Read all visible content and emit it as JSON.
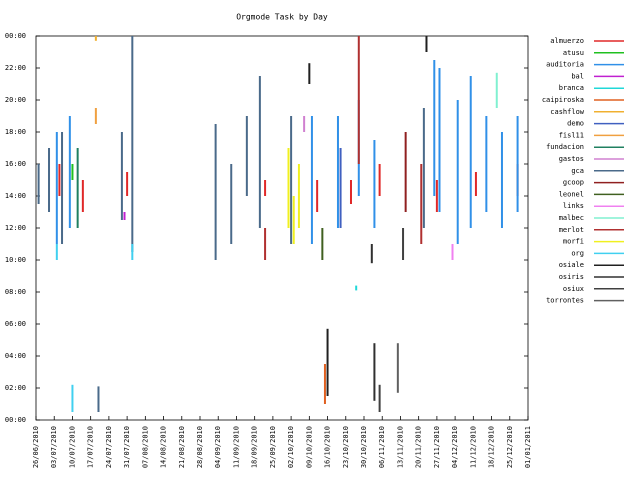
{
  "chart_data": {
    "type": "range",
    "title": "Orgmode Task by Day",
    "xlim": [
      "2010-06-26",
      "2011-01-01"
    ],
    "xticks": [
      {
        "value": "2010-06-26",
        "label": "26/06/2010"
      },
      {
        "value": "2010-07-03",
        "label": "03/07/2010"
      },
      {
        "value": "2010-07-10",
        "label": "10/07/2010"
      },
      {
        "value": "2010-07-17",
        "label": "17/07/2010"
      },
      {
        "value": "2010-07-24",
        "label": "24/07/2010"
      },
      {
        "value": "2010-07-31",
        "label": "31/07/2010"
      },
      {
        "value": "2010-08-07",
        "label": "07/08/2010"
      },
      {
        "value": "2010-08-14",
        "label": "14/08/2010"
      },
      {
        "value": "2010-08-21",
        "label": "21/08/2010"
      },
      {
        "value": "2010-08-28",
        "label": "28/08/2010"
      },
      {
        "value": "2010-09-04",
        "label": "04/09/2010"
      },
      {
        "value": "2010-09-11",
        "label": "11/09/2010"
      },
      {
        "value": "2010-09-18",
        "label": "18/09/2010"
      },
      {
        "value": "2010-09-25",
        "label": "25/09/2010"
      },
      {
        "value": "2010-10-02",
        "label": "02/10/2010"
      },
      {
        "value": "2010-10-09",
        "label": "09/10/2010"
      },
      {
        "value": "2010-10-16",
        "label": "16/10/2010"
      },
      {
        "value": "2010-10-23",
        "label": "23/10/2010"
      },
      {
        "value": "2010-10-30",
        "label": "30/10/2010"
      },
      {
        "value": "2010-11-06",
        "label": "06/11/2010"
      },
      {
        "value": "2010-11-13",
        "label": "13/11/2010"
      },
      {
        "value": "2010-11-20",
        "label": "20/11/2010"
      },
      {
        "value": "2010-11-27",
        "label": "27/11/2010"
      },
      {
        "value": "2010-12-04",
        "label": "04/12/2010"
      },
      {
        "value": "2010-12-11",
        "label": "11/12/2010"
      },
      {
        "value": "2010-12-18",
        "label": "18/12/2010"
      },
      {
        "value": "2010-12-25",
        "label": "25/12/2010"
      },
      {
        "value": "2011-01-01",
        "label": "01/01/2011"
      }
    ],
    "ylim": [
      0,
      24
    ],
    "yticks": [
      {
        "value": 0,
        "label": "00:00"
      },
      {
        "value": 2,
        "label": "02:00"
      },
      {
        "value": 4,
        "label": "04:00"
      },
      {
        "value": 6,
        "label": "06:00"
      },
      {
        "value": 8,
        "label": "08:00"
      },
      {
        "value": 10,
        "label": "10:00"
      },
      {
        "value": 12,
        "label": "12:00"
      },
      {
        "value": 14,
        "label": "14:00"
      },
      {
        "value": 16,
        "label": "16:00"
      },
      {
        "value": 18,
        "label": "18:00"
      },
      {
        "value": 20,
        "label": "20:00"
      },
      {
        "value": 22,
        "label": "22:00"
      },
      {
        "value": 24,
        "label": "00:00"
      }
    ],
    "legend": "right",
    "series": [
      {
        "name": "almuerzo",
        "color": "#e02828",
        "x": [
          "2010-07-05",
          "2010-07-14",
          "2010-07-31",
          "2010-09-22",
          "2010-10-12",
          "2010-10-25",
          "2010-11-05",
          "2010-11-27",
          "2010-12-12",
          "2010-12-28"
        ],
        "start": [
          14,
          13,
          14,
          14,
          13,
          13.5,
          14,
          13,
          14,
          14
        ],
        "end": [
          16,
          15,
          15.5,
          15,
          15,
          15,
          16,
          15,
          15.5,
          16
        ]
      },
      {
        "name": "atusu",
        "color": "#20c020",
        "x": [
          "2010-07-10"
        ],
        "start": [
          15
        ],
        "end": [
          16
        ]
      },
      {
        "name": "auditoria",
        "color": "#3090e8",
        "x": [
          "2010-07-04",
          "2010-07-09",
          "2010-10-10",
          "2010-10-20",
          "2010-10-28",
          "2010-11-03",
          "2010-11-26",
          "2010-11-28",
          "2010-12-05",
          "2010-12-10",
          "2010-12-16",
          "2010-12-22",
          "2010-12-28"
        ],
        "start": [
          11,
          12,
          11,
          12,
          14,
          12,
          14,
          13,
          11,
          12,
          13,
          12,
          13
        ],
        "end": [
          18,
          19,
          19,
          19,
          20,
          17.5,
          22.5,
          22,
          20,
          21.5,
          19,
          18,
          19
        ]
      },
      {
        "name": "bal",
        "color": "#c020d0",
        "x": [
          "2010-07-30"
        ],
        "start": [
          12.5
        ],
        "end": [
          13
        ]
      },
      {
        "name": "branca",
        "color": "#20d8d8",
        "x": [
          "2010-10-27"
        ],
        "start": [
          8.1
        ],
        "end": [
          8.4
        ]
      },
      {
        "name": "caipiroska",
        "color": "#e06020",
        "x": [
          "2010-10-15"
        ],
        "start": [
          1
        ],
        "end": [
          3.5
        ]
      },
      {
        "name": "cashflow",
        "color": "#f0b030",
        "x": [
          "2010-07-19"
        ],
        "start": [
          23.7
        ],
        "end": [
          24
        ]
      },
      {
        "name": "demo",
        "color": "#4060c0",
        "x": [
          "2010-10-21"
        ],
        "start": [
          12
        ],
        "end": [
          17
        ]
      },
      {
        "name": "fisl11",
        "color": "#f0a040",
        "x": [
          "2010-07-19"
        ],
        "start": [
          18.5
        ],
        "end": [
          19.5
        ]
      },
      {
        "name": "fundacion",
        "color": "#208060",
        "x": [
          "2010-07-12"
        ],
        "start": [
          12
        ],
        "end": [
          17
        ]
      },
      {
        "name": "gastos",
        "color": "#d080d0",
        "x": [
          "2010-10-07"
        ],
        "start": [
          18
        ],
        "end": [
          19
        ]
      },
      {
        "name": "gca",
        "color": "#4a6a8a",
        "x": [
          "2010-06-27",
          "2010-07-01",
          "2010-07-06",
          "2010-07-20",
          "2010-07-29",
          "2010-08-02",
          "2010-09-03",
          "2010-09-09",
          "2010-09-15",
          "2010-09-20",
          "2010-10-02",
          "2010-11-22"
        ],
        "start": [
          13.5,
          13,
          11,
          0.5,
          12.5,
          10.5,
          10,
          11,
          14,
          12,
          11,
          12
        ],
        "end": [
          16,
          17,
          18,
          2.1,
          18,
          24,
          18.5,
          16,
          19,
          21.5,
          19,
          19.5
        ]
      },
      {
        "name": "gcoop",
        "color": "#902020",
        "x": [
          "2010-11-15"
        ],
        "start": [
          13
        ],
        "end": [
          18
        ]
      },
      {
        "name": "leonel",
        "color": "#406020",
        "x": [
          "2010-10-14"
        ],
        "start": [
          10
        ],
        "end": [
          12
        ]
      },
      {
        "name": "links",
        "color": "#f080f0",
        "x": [
          "2010-12-03"
        ],
        "start": [
          10
        ],
        "end": [
          11
        ]
      },
      {
        "name": "malbec",
        "color": "#80f0d0",
        "x": [
          "2010-12-20"
        ],
        "start": [
          19.5
        ],
        "end": [
          21.7
        ]
      },
      {
        "name": "merlot",
        "color": "#b03030",
        "x": [
          "2010-09-22",
          "2010-10-28",
          "2010-11-21"
        ],
        "start": [
          10,
          16,
          11
        ],
        "end": [
          12,
          24,
          16
        ]
      },
      {
        "name": "morfi",
        "color": "#f0f020",
        "x": [
          "2010-10-01",
          "2010-10-03",
          "2010-10-05"
        ],
        "start": [
          12,
          11,
          12
        ],
        "end": [
          17,
          14,
          16
        ]
      },
      {
        "name": "org",
        "color": "#40d0f0",
        "x": [
          "2010-07-04",
          "2010-07-10",
          "2010-08-02"
        ],
        "start": [
          10,
          0.5,
          10
        ],
        "end": [
          11,
          2.2,
          11
        ]
      },
      {
        "name": "osiale",
        "color": "#202020",
        "x": [
          "2010-10-09",
          "2010-10-16",
          "2010-11-23"
        ],
        "start": [
          21,
          1.5,
          23
        ],
        "end": [
          22.3,
          5.7,
          24
        ]
      },
      {
        "name": "osiris",
        "color": "#303030",
        "x": [
          "2010-11-03",
          "2010-11-02"
        ],
        "start": [
          1.2,
          9.8
        ],
        "end": [
          4.8,
          11
        ]
      },
      {
        "name": "osiux",
        "color": "#404040",
        "x": [
          "2010-11-05",
          "2010-11-14"
        ],
        "start": [
          0.5,
          10
        ],
        "end": [
          2.2,
          12
        ]
      },
      {
        "name": "torrontes",
        "color": "#606060",
        "x": [
          "2010-11-12"
        ],
        "start": [
          1.7
        ],
        "end": [
          4.8
        ]
      }
    ]
  }
}
